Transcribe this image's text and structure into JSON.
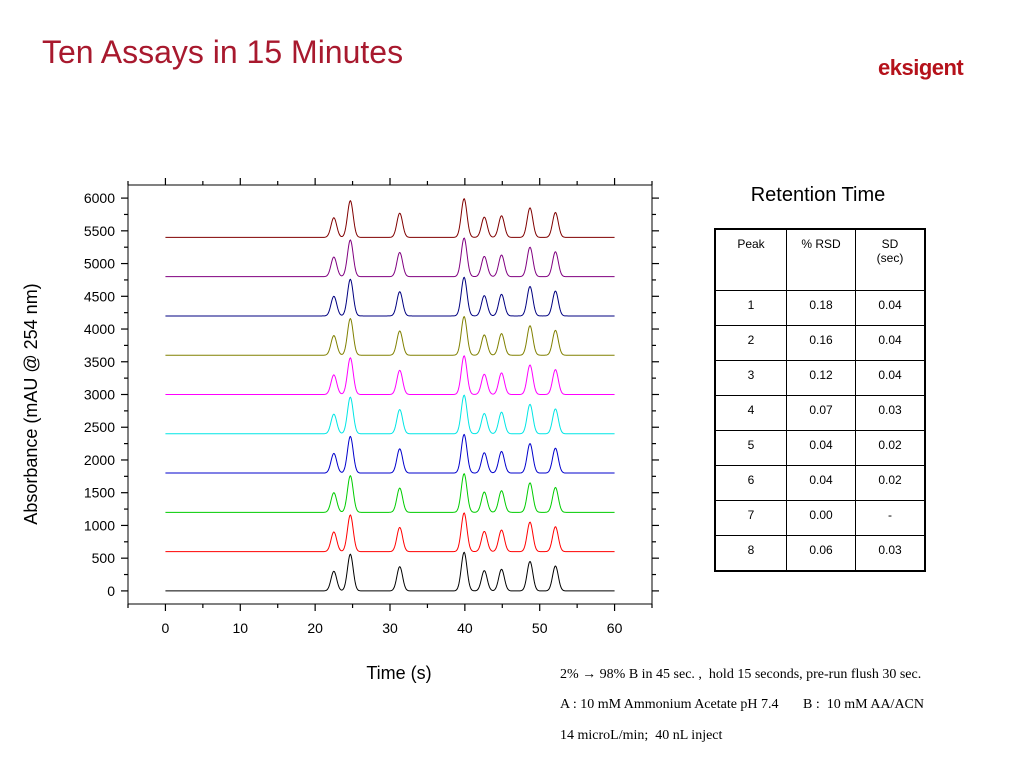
{
  "slide": {
    "title": "Ten Assays in 15 Minutes",
    "logo": "eksigent",
    "colors": {
      "title": "#a8192e",
      "logo": "#b5121b"
    }
  },
  "chart_data": {
    "type": "line",
    "xlabel": "Time (s)",
    "ylabel": "Absorbance (mAU @ 254 nm)",
    "xlim": [
      -5,
      65
    ],
    "ylim": [
      -200,
      6200
    ],
    "x_ticks": [
      0,
      10,
      20,
      30,
      40,
      50,
      60
    ],
    "y_ticks": [
      0,
      500,
      1000,
      1500,
      2000,
      2500,
      3000,
      3500,
      4000,
      4500,
      5000,
      5500,
      6000
    ],
    "grid": false,
    "peaks": [
      {
        "rt": 22.5,
        "height": 300
      },
      {
        "rt": 24.7,
        "height": 560
      },
      {
        "rt": 31.3,
        "height": 370
      },
      {
        "rt": 39.9,
        "height": 590
      },
      {
        "rt": 42.6,
        "height": 310
      },
      {
        "rt": 44.9,
        "height": 330
      },
      {
        "rt": 48.7,
        "height": 450
      },
      {
        "rt": 52.1,
        "height": 380
      }
    ],
    "series": [
      {
        "baseline": 0,
        "color": "#000000"
      },
      {
        "baseline": 600,
        "color": "#ff0000"
      },
      {
        "baseline": 1200,
        "color": "#00cc00"
      },
      {
        "baseline": 1800,
        "color": "#0000cc"
      },
      {
        "baseline": 2400,
        "color": "#00e5e5"
      },
      {
        "baseline": 3000,
        "color": "#ff00ff"
      },
      {
        "baseline": 3600,
        "color": "#808000"
      },
      {
        "baseline": 4200,
        "color": "#000080"
      },
      {
        "baseline": 4800,
        "color": "#800080"
      },
      {
        "baseline": 5400,
        "color": "#800000"
      }
    ]
  },
  "retention_table": {
    "title": "Retention Time",
    "headers": [
      "Peak",
      "% RSD",
      "SD\n(sec)"
    ],
    "rows": [
      [
        "1",
        "0.18",
        "0.04"
      ],
      [
        "2",
        "0.16",
        "0.04"
      ],
      [
        "3",
        "0.12",
        "0.04"
      ],
      [
        "4",
        "0.07",
        "0.03"
      ],
      [
        "5",
        "0.04",
        "0.02"
      ],
      [
        "6",
        "0.04",
        "0.02"
      ],
      [
        "7",
        "0.00",
        "-"
      ],
      [
        "8",
        "0.06",
        "0.03"
      ]
    ]
  },
  "conditions": [
    "2% → 98% B in 45 sec. ,  hold 15 seconds, pre-run flush 30 sec.",
    "A : 10 mM Ammonium Acetate pH 7.4       B :  10 mM AA/ACN",
    "14 microL/min;  40 nL inject"
  ]
}
